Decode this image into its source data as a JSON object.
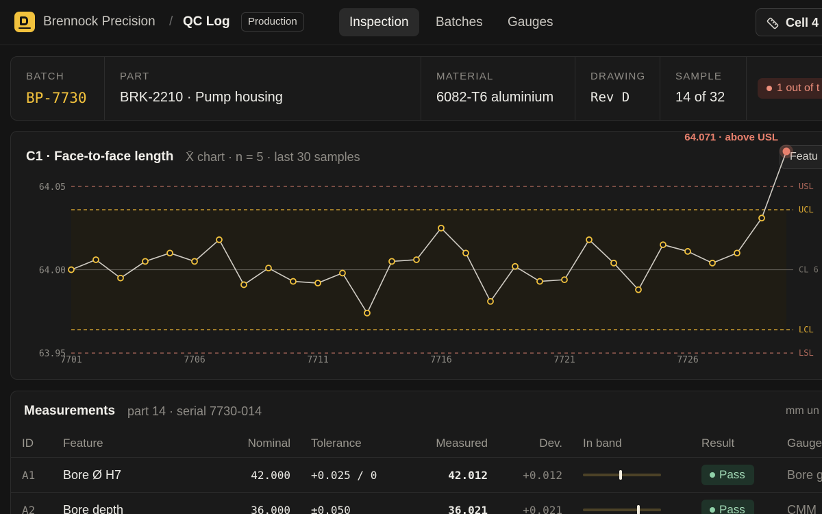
{
  "app": {
    "brand": "Brennock Precision",
    "separator": "/",
    "title": "QC Log",
    "environment": "Production"
  },
  "nav": {
    "tabs": [
      {
        "label": "Inspection",
        "active": true
      },
      {
        "label": "Batches",
        "active": false
      },
      {
        "label": "Gauges",
        "active": false
      }
    ],
    "cell_label": "Cell 4"
  },
  "info": {
    "batch": {
      "label": "Batch",
      "value": "BP-7730"
    },
    "part": {
      "label": "Part",
      "value": "BRK-2210 · Pump housing"
    },
    "material": {
      "label": "Material",
      "value": "6082-T6 aluminium"
    },
    "drawing": {
      "label": "Drawing",
      "value": "Rev D"
    },
    "sample": {
      "label": "Sample",
      "value": "14 of 32"
    },
    "alert": "1 out of t"
  },
  "chart_card": {
    "title": "C1 · Face-to-face length",
    "subtitle": "X̄ chart · n = 5 · last 30 samples",
    "feature_button": "Featu"
  },
  "chart_data": {
    "type": "line",
    "x": [
      7701,
      7702,
      7703,
      7704,
      7705,
      7706,
      7707,
      7708,
      7709,
      7710,
      7711,
      7712,
      7713,
      7714,
      7715,
      7716,
      7717,
      7718,
      7719,
      7720,
      7721,
      7722,
      7723,
      7724,
      7725,
      7726,
      7727,
      7728,
      7729,
      7730
    ],
    "values": [
      64.0,
      64.006,
      63.995,
      64.005,
      64.01,
      64.005,
      64.018,
      63.991,
      64.001,
      63.993,
      63.992,
      63.998,
      63.974,
      64.005,
      64.006,
      64.025,
      64.01,
      63.981,
      64.002,
      63.993,
      63.994,
      64.018,
      64.004,
      63.988,
      64.015,
      64.011,
      64.004,
      64.01,
      64.031,
      64.071
    ],
    "x_ticks": [
      "7701",
      "7706",
      "7711",
      "7716",
      "7721",
      "7726"
    ],
    "y_ticks": [
      "64.05",
      "64.00",
      "63.95"
    ],
    "ylim": [
      63.9336,
      64.0829
    ],
    "limits": {
      "USL": 64.05,
      "UCL": 64.036,
      "CL": 64.0,
      "LCL": 63.964,
      "LSL": 63.95
    },
    "limit_labels": {
      "USL": "USL",
      "UCL": "UCL",
      "CL": "CL 6",
      "LCL": "LCL",
      "LSL": "LSL"
    },
    "annotation": "64.071 · above USL",
    "colors": {
      "point": "#f2c23d",
      "line": "#cfcbc3",
      "spec": "#b06a5c",
      "control": "#e0ad33",
      "outlier": "#e8806d",
      "band": "#1f1c14"
    }
  },
  "measurements": {
    "title": "Measurements",
    "subtitle": "part 14 · serial 7730-014",
    "units": "mm un",
    "columns": [
      "ID",
      "Feature",
      "Nominal",
      "Tolerance",
      "Measured",
      "Dev.",
      "In band",
      "Result",
      "Gauge"
    ],
    "rows": [
      {
        "id": "A1",
        "feature": "Bore Ø H7",
        "nominal": "42.000",
        "tolerance": "+0.025 / 0",
        "measured": "42.012",
        "dev": "+0.012",
        "band": 0.48,
        "result": "Pass",
        "gauge": "Bore g"
      },
      {
        "id": "A2",
        "feature": "Bore depth",
        "nominal": "36.000",
        "tolerance": "±0.050",
        "measured": "36.021",
        "dev": "+0.021",
        "band": 0.71,
        "result": "Pass",
        "gauge": "CMM"
      }
    ]
  }
}
